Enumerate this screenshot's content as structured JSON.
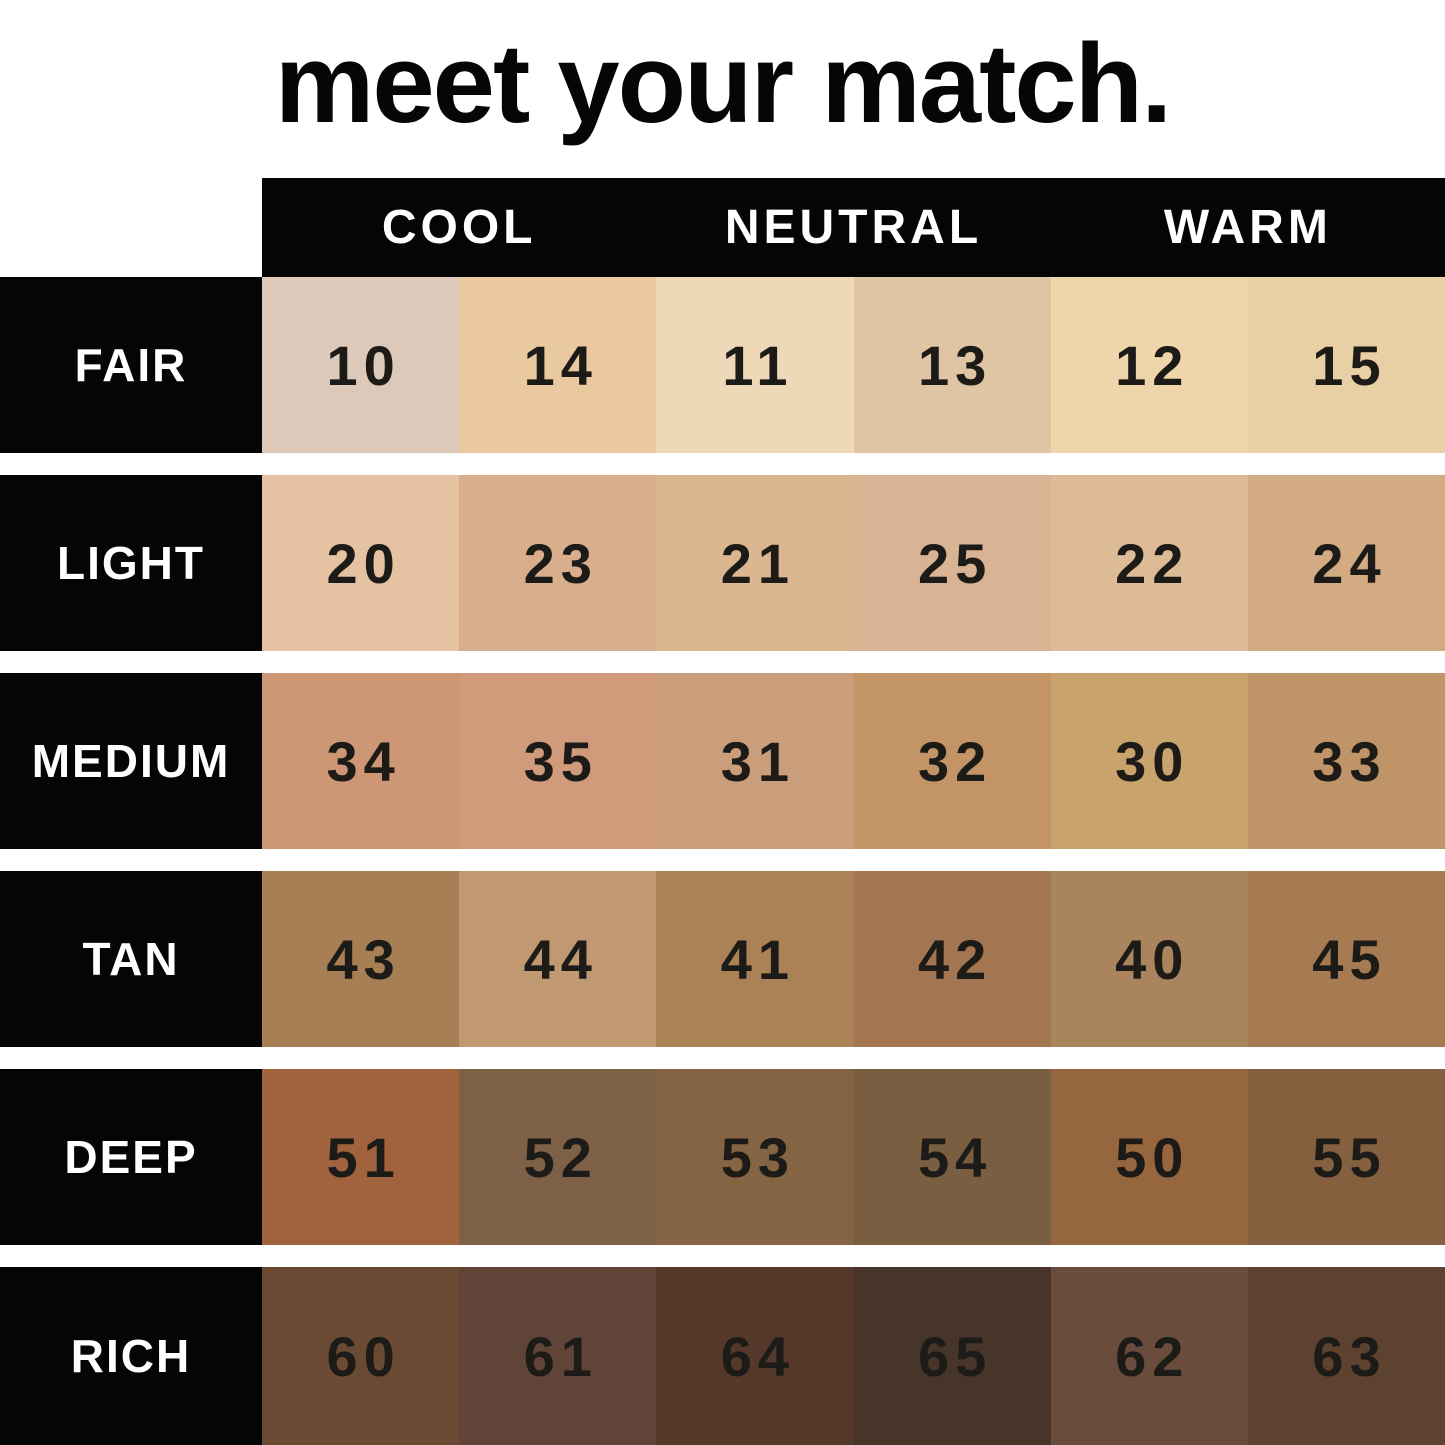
{
  "title": "meet your match.",
  "colors": {
    "background": "#ffffff",
    "block": "#050505",
    "header_text": "#ffffff",
    "number_text": "#1d1b18"
  },
  "chart_data": {
    "type": "table",
    "title": "meet your match.",
    "column_groups": [
      "COOL",
      "NEUTRAL",
      "WARM"
    ],
    "row_labels": [
      "FAIR",
      "LIGHT",
      "MEDIUM",
      "TAN",
      "DEEP",
      "RICH"
    ],
    "values": [
      [
        10,
        14,
        11,
        13,
        12,
        15
      ],
      [
        20,
        23,
        21,
        25,
        22,
        24
      ],
      [
        34,
        35,
        31,
        32,
        30,
        33
      ],
      [
        43,
        44,
        41,
        42,
        40,
        45
      ],
      [
        51,
        52,
        53,
        54,
        50,
        55
      ],
      [
        60,
        61,
        64,
        65,
        62,
        63
      ]
    ],
    "rows": [
      {
        "label": "FAIR",
        "shades": [
          {
            "num": "10",
            "color": "#dcc9ba"
          },
          {
            "num": "14",
            "color": "#ebc9a0"
          },
          {
            "num": "11",
            "color": "#edd8b8"
          },
          {
            "num": "13",
            "color": "#dfc5a3"
          },
          {
            "num": "12",
            "color": "#eed5aa"
          },
          {
            "num": "15",
            "color": "#e9d0a4"
          }
        ]
      },
      {
        "label": "LIGHT",
        "shades": [
          {
            "num": "20",
            "color": "#e4c2a2"
          },
          {
            "num": "23",
            "color": "#d8ae8c"
          },
          {
            "num": "21",
            "color": "#dcb691"
          },
          {
            "num": "25",
            "color": "#d8b494"
          },
          {
            "num": "22",
            "color": "#ddbb96"
          },
          {
            "num": "24",
            "color": "#d2ab83"
          }
        ]
      },
      {
        "label": "MEDIUM",
        "shades": [
          {
            "num": "34",
            "color": "#cd9674"
          },
          {
            "num": "35",
            "color": "#d09b7a"
          },
          {
            "num": "31",
            "color": "#cb9e7b"
          },
          {
            "num": "32",
            "color": "#c39566"
          },
          {
            "num": "30",
            "color": "#c8a36c"
          },
          {
            "num": "33",
            "color": "#bf9468"
          }
        ]
      },
      {
        "label": "TAN",
        "shades": [
          {
            "num": "43",
            "color": "#a87e54"
          },
          {
            "num": "44",
            "color": "#c09972"
          },
          {
            "num": "41",
            "color": "#ab8156"
          },
          {
            "num": "42",
            "color": "#a37550"
          },
          {
            "num": "40",
            "color": "#a9845c"
          },
          {
            "num": "45",
            "color": "#a77b52"
          }
        ]
      },
      {
        "label": "DEEP",
        "shades": [
          {
            "num": "51",
            "color": "#a0633d"
          },
          {
            "num": "52",
            "color": "#7d6046"
          },
          {
            "num": "53",
            "color": "#856443"
          },
          {
            "num": "54",
            "color": "#795e42"
          },
          {
            "num": "50",
            "color": "#96663e"
          },
          {
            "num": "55",
            "color": "#84603f"
          }
        ]
      },
      {
        "label": "RICH",
        "shades": [
          {
            "num": "60",
            "color": "#6a4a33"
          },
          {
            "num": "61",
            "color": "#5f4437"
          },
          {
            "num": "64",
            "color": "#54392b"
          },
          {
            "num": "65",
            "color": "#48352a"
          },
          {
            "num": "62",
            "color": "#6a4c3d"
          },
          {
            "num": "63",
            "color": "#5d4230"
          }
        ]
      }
    ]
  }
}
